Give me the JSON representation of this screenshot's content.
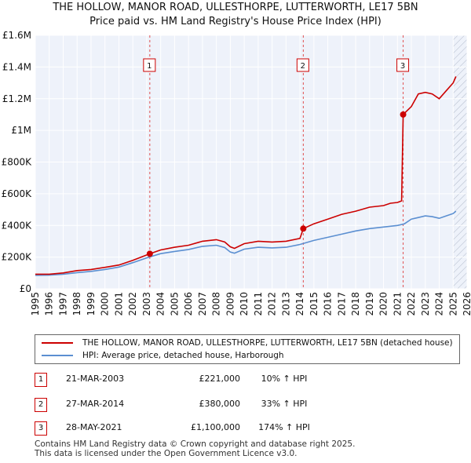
{
  "chart_data": {
    "type": "line",
    "title": "THE HOLLOW, MANOR ROAD, ULLESTHORPE, LUTTERWORTH, LE17 5BN",
    "subtitle": "Price paid vs. HM Land Registry's House Price Index (HPI)",
    "xlabel": "",
    "ylabel": "",
    "xlim": [
      1995,
      2026
    ],
    "ylim": [
      0,
      1600000
    ],
    "x_ticks": [
      "1995",
      "1996",
      "1997",
      "1998",
      "1999",
      "2000",
      "2001",
      "2002",
      "2003",
      "2004",
      "2005",
      "2006",
      "2007",
      "2008",
      "2009",
      "2010",
      "2011",
      "2012",
      "2013",
      "2014",
      "2015",
      "2016",
      "2017",
      "2018",
      "2019",
      "2020",
      "2021",
      "2022",
      "2023",
      "2024",
      "2025",
      "2026"
    ],
    "y_ticks": [
      {
        "value": 0,
        "label": "£0"
      },
      {
        "value": 200000,
        "label": "£200K"
      },
      {
        "value": 400000,
        "label": "£400K"
      },
      {
        "value": 600000,
        "label": "£600K"
      },
      {
        "value": 800000,
        "label": "£800K"
      },
      {
        "value": 1000000,
        "label": "£1M"
      },
      {
        "value": 1200000,
        "label": "£1.2M"
      },
      {
        "value": 1400000,
        "label": "£1.4M"
      },
      {
        "value": 1600000,
        "label": "£1.6M"
      }
    ],
    "grid": true,
    "forecast_start": 2025.0,
    "series": [
      {
        "name": "THE HOLLOW, MANOR ROAD, ULLESTHORPE, LUTTERWORTH, LE17 5BN (detached house)",
        "color": "#cc0000",
        "points": [
          [
            1995.0,
            92000
          ],
          [
            1996.0,
            92000
          ],
          [
            1997.0,
            100000
          ],
          [
            1998.0,
            115000
          ],
          [
            1999.0,
            122000
          ],
          [
            2000.0,
            135000
          ],
          [
            2001.0,
            150000
          ],
          [
            2002.0,
            180000
          ],
          [
            2003.22,
            221000
          ],
          [
            2004.0,
            245000
          ],
          [
            2005.0,
            262000
          ],
          [
            2006.0,
            275000
          ],
          [
            2007.0,
            300000
          ],
          [
            2008.0,
            310000
          ],
          [
            2008.6,
            295000
          ],
          [
            2009.0,
            265000
          ],
          [
            2009.3,
            255000
          ],
          [
            2010.0,
            285000
          ],
          [
            2011.0,
            300000
          ],
          [
            2012.0,
            295000
          ],
          [
            2013.0,
            300000
          ],
          [
            2014.0,
            318000
          ],
          [
            2014.24,
            380000
          ],
          [
            2015.0,
            410000
          ],
          [
            2016.0,
            440000
          ],
          [
            2017.0,
            470000
          ],
          [
            2018.0,
            490000
          ],
          [
            2019.0,
            515000
          ],
          [
            2020.0,
            525000
          ],
          [
            2020.5,
            540000
          ],
          [
            2021.0,
            545000
          ],
          [
            2021.3,
            555000
          ],
          [
            2021.41,
            1100000
          ],
          [
            2022.0,
            1150000
          ],
          [
            2022.5,
            1230000
          ],
          [
            2023.0,
            1240000
          ],
          [
            2023.5,
            1230000
          ],
          [
            2024.0,
            1200000
          ],
          [
            2024.5,
            1250000
          ],
          [
            2025.0,
            1300000
          ],
          [
            2025.2,
            1340000
          ]
        ]
      },
      {
        "name": "HPI: Average price, detached house, Harborough",
        "color": "#5b8fd1",
        "points": [
          [
            1995.0,
            85000
          ],
          [
            1996.0,
            86000
          ],
          [
            1997.0,
            92000
          ],
          [
            1998.0,
            102000
          ],
          [
            1999.0,
            110000
          ],
          [
            2000.0,
            122000
          ],
          [
            2001.0,
            137000
          ],
          [
            2002.0,
            165000
          ],
          [
            2003.0,
            195000
          ],
          [
            2004.0,
            222000
          ],
          [
            2005.0,
            236000
          ],
          [
            2006.0,
            248000
          ],
          [
            2007.0,
            268000
          ],
          [
            2008.0,
            275000
          ],
          [
            2008.6,
            260000
          ],
          [
            2009.0,
            232000
          ],
          [
            2009.3,
            225000
          ],
          [
            2010.0,
            250000
          ],
          [
            2011.0,
            262000
          ],
          [
            2012.0,
            258000
          ],
          [
            2013.0,
            262000
          ],
          [
            2014.0,
            280000
          ],
          [
            2015.0,
            305000
          ],
          [
            2016.0,
            325000
          ],
          [
            2017.0,
            345000
          ],
          [
            2018.0,
            365000
          ],
          [
            2019.0,
            380000
          ],
          [
            2020.0,
            390000
          ],
          [
            2020.5,
            395000
          ],
          [
            2021.0,
            400000
          ],
          [
            2021.5,
            410000
          ],
          [
            2022.0,
            440000
          ],
          [
            2022.5,
            450000
          ],
          [
            2023.0,
            460000
          ],
          [
            2023.5,
            455000
          ],
          [
            2024.0,
            445000
          ],
          [
            2024.5,
            460000
          ],
          [
            2025.0,
            475000
          ],
          [
            2025.2,
            490000
          ]
        ]
      }
    ],
    "markers": [
      {
        "label": "1",
        "x": 2003.22,
        "y": 221000
      },
      {
        "label": "2",
        "x": 2014.24,
        "y": 380000
      },
      {
        "label": "3",
        "x": 2021.41,
        "y": 1100000
      }
    ]
  },
  "legend": {
    "items": [
      {
        "label": "THE HOLLOW, MANOR ROAD, ULLESTHORPE, LUTTERWORTH, LE17 5BN (detached house)",
        "color": "#cc0000"
      },
      {
        "label": "HPI: Average price, detached house, Harborough",
        "color": "#5b8fd1"
      }
    ]
  },
  "transactions": [
    {
      "num": "1",
      "date": "21-MAR-2003",
      "price": "£221,000",
      "hpi": "10% ↑ HPI"
    },
    {
      "num": "2",
      "date": "27-MAR-2014",
      "price": "£380,000",
      "hpi": "33% ↑ HPI"
    },
    {
      "num": "3",
      "date": "28-MAY-2021",
      "price": "£1,100,000",
      "hpi": "174% ↑ HPI"
    }
  ],
  "footer": {
    "line1": "Contains HM Land Registry data © Crown copyright and database right 2025.",
    "line2": "This data is licensed under the Open Government Licence v3.0."
  }
}
